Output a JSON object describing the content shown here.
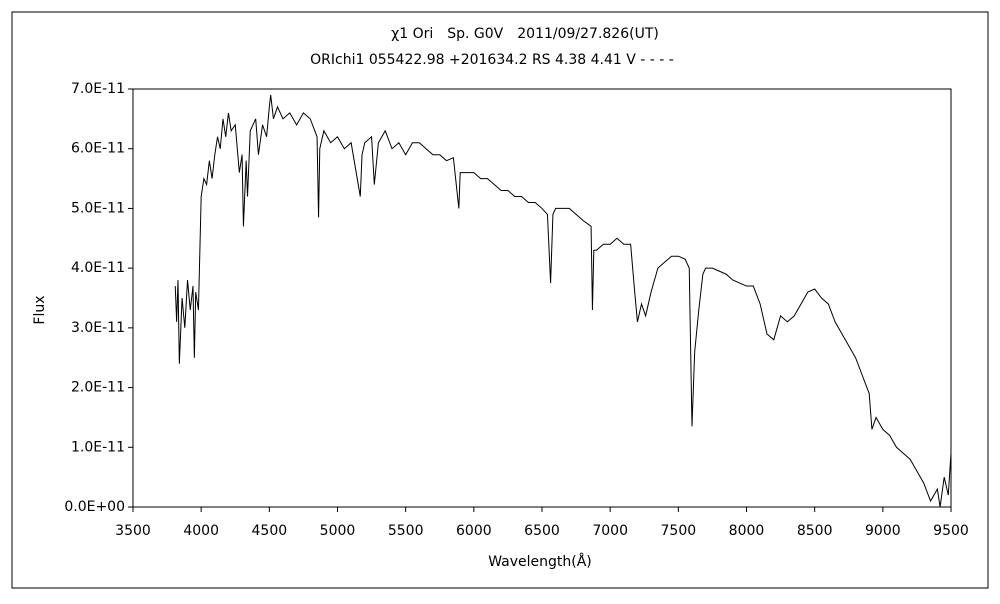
{
  "chart_data": {
    "type": "line",
    "title": "χ1 Ori　Sp. G0V　2011/09/27.826(UT)",
    "subtitle": "ORIchi1 055422.98 +201634.2 RS 4.38 4.41 V - - - -",
    "xlabel": "Wavelength(Å)",
    "ylabel": "Flux",
    "color": "#000000",
    "grid": false,
    "xlim": [
      3500,
      9500
    ],
    "xticks": [
      3500,
      4000,
      4500,
      5000,
      5500,
      6000,
      6500,
      7000,
      7500,
      8000,
      8500,
      9000,
      9500
    ],
    "ylim": [
      0,
      7e-11
    ],
    "yticks": [
      {
        "value": 0,
        "label": "0.0E+00"
      },
      {
        "value": 1e-11,
        "label": "1.0E-11"
      },
      {
        "value": 2e-11,
        "label": "2.0E-11"
      },
      {
        "value": 3e-11,
        "label": "3.0E-11"
      },
      {
        "value": 4e-11,
        "label": "4.0E-11"
      },
      {
        "value": 5e-11,
        "label": "5.0E-11"
      },
      {
        "value": 6e-11,
        "label": "6.0E-11"
      },
      {
        "value": 7e-11,
        "label": "7.0E-11"
      }
    ],
    "x": [
      3810,
      3820,
      3830,
      3840,
      3860,
      3880,
      3900,
      3920,
      3940,
      3950,
      3960,
      3980,
      4000,
      4020,
      4040,
      4060,
      4080,
      4100,
      4120,
      4140,
      4160,
      4180,
      4200,
      4220,
      4250,
      4280,
      4300,
      4310,
      4330,
      4340,
      4360,
      4400,
      4420,
      4450,
      4480,
      4500,
      4510,
      4530,
      4560,
      4600,
      4650,
      4700,
      4750,
      4800,
      4850,
      4861,
      4870,
      4900,
      4950,
      5000,
      5050,
      5100,
      5167,
      5180,
      5200,
      5250,
      5270,
      5300,
      5350,
      5400,
      5450,
      5500,
      5550,
      5600,
      5650,
      5700,
      5750,
      5800,
      5850,
      5890,
      5900,
      5950,
      6000,
      6050,
      6100,
      6150,
      6200,
      6250,
      6300,
      6350,
      6400,
      6450,
      6500,
      6540,
      6563,
      6580,
      6600,
      6650,
      6700,
      6750,
      6800,
      6860,
      6870,
      6880,
      6900,
      6950,
      7000,
      7050,
      7100,
      7150,
      7180,
      7200,
      7230,
      7260,
      7300,
      7350,
      7400,
      7450,
      7500,
      7550,
      7580,
      7600,
      7620,
      7650,
      7680,
      7700,
      7750,
      7800,
      7850,
      7900,
      7950,
      8000,
      8050,
      8100,
      8150,
      8200,
      8250,
      8300,
      8350,
      8400,
      8450,
      8500,
      8550,
      8600,
      8650,
      8700,
      8750,
      8800,
      8850,
      8900,
      8920,
      8950,
      9000,
      9050,
      9100,
      9150,
      9200,
      9250,
      9300,
      9350,
      9400,
      9420,
      9450,
      9480,
      9500
    ],
    "values": [
      3.7e-11,
      3.1e-11,
      3.8e-11,
      2.4e-11,
      3.5e-11,
      3e-11,
      3.8e-11,
      3.3e-11,
      3.7e-11,
      2.5e-11,
      3.6e-11,
      3.3e-11,
      5.2e-11,
      5.5e-11,
      5.4e-11,
      5.8e-11,
      5.5e-11,
      5.9e-11,
      6.2e-11,
      6e-11,
      6.5e-11,
      6.2e-11,
      6.6e-11,
      6.3e-11,
      6.4e-11,
      5.6e-11,
      5.9e-11,
      4.7e-11,
      5.8e-11,
      5.2e-11,
      6.3e-11,
      6.5e-11,
      5.9e-11,
      6.4e-11,
      6.2e-11,
      6.7e-11,
      6.9e-11,
      6.5e-11,
      6.7e-11,
      6.5e-11,
      6.6e-11,
      6.4e-11,
      6.6e-11,
      6.5e-11,
      6.2e-11,
      4.85e-11,
      6e-11,
      6.3e-11,
      6.1e-11,
      6.2e-11,
      6e-11,
      6.1e-11,
      5.2e-11,
      5.9e-11,
      6.1e-11,
      6.2e-11,
      5.4e-11,
      6.1e-11,
      6.3e-11,
      6e-11,
      6.1e-11,
      5.9e-11,
      6.1e-11,
      6.1e-11,
      6e-11,
      5.9e-11,
      5.9e-11,
      5.8e-11,
      5.85e-11,
      5e-11,
      5.6e-11,
      5.6e-11,
      5.6e-11,
      5.5e-11,
      5.5e-11,
      5.4e-11,
      5.3e-11,
      5.3e-11,
      5.2e-11,
      5.2e-11,
      5.1e-11,
      5.1e-11,
      5e-11,
      4.9e-11,
      3.75e-11,
      4.9e-11,
      5e-11,
      5e-11,
      5e-11,
      4.9e-11,
      4.8e-11,
      4.7e-11,
      3.3e-11,
      4.3e-11,
      4.3e-11,
      4.4e-11,
      4.4e-11,
      4.5e-11,
      4.4e-11,
      4.4e-11,
      3.6e-11,
      3.1e-11,
      3.4e-11,
      3.2e-11,
      3.6e-11,
      4e-11,
      4.1e-11,
      4.2e-11,
      4.2e-11,
      4.15e-11,
      4e-11,
      1.35e-11,
      2.6e-11,
      3.3e-11,
      3.9e-11,
      4e-11,
      4e-11,
      3.95e-11,
      3.9e-11,
      3.8e-11,
      3.75e-11,
      3.7e-11,
      3.7e-11,
      3.4e-11,
      2.9e-11,
      2.8e-11,
      3.2e-11,
      3.1e-11,
      3.2e-11,
      3.4e-11,
      3.6e-11,
      3.65e-11,
      3.5e-11,
      3.4e-11,
      3.1e-11,
      2.9e-11,
      2.7e-11,
      2.5e-11,
      2.2e-11,
      1.9e-11,
      1.3e-11,
      1.5e-11,
      1.3e-11,
      1.2e-11,
      1e-11,
      9e-12,
      8e-12,
      6e-12,
      4e-12,
      1e-12,
      3e-12,
      0,
      5e-12,
      2e-12,
      9e-12
    ]
  }
}
